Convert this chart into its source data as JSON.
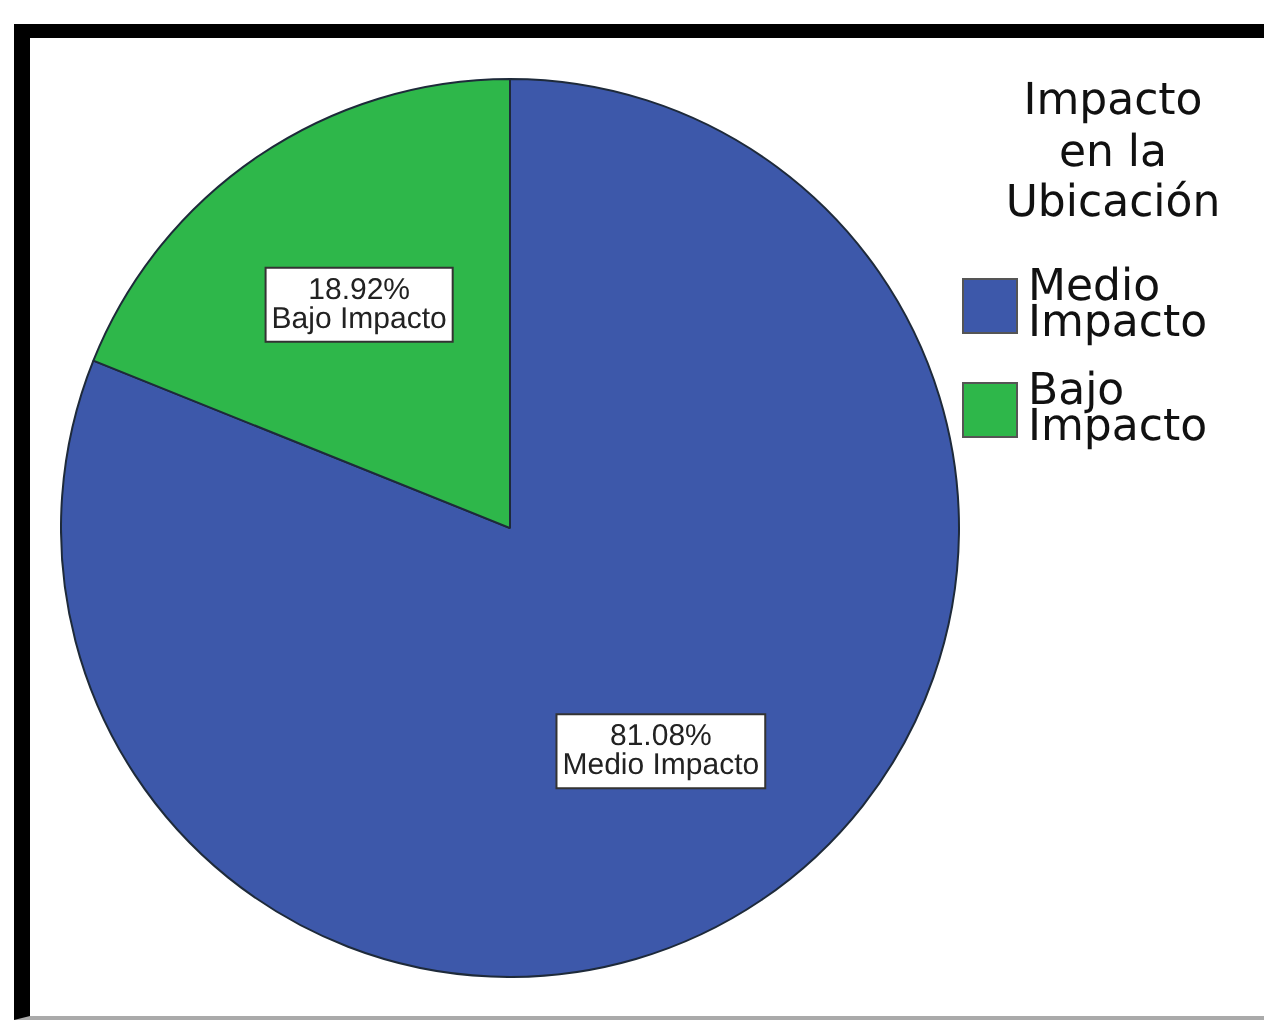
{
  "chart_data": {
    "type": "pie",
    "categories": [
      "Medio Impacto",
      "Bajo Impacto"
    ],
    "values": [
      81.08,
      18.92
    ],
    "colors": [
      "#3d58aa",
      "#2eb74a"
    ],
    "value_labels": [
      "81.08%",
      "18.92%"
    ],
    "legend_title": "Impacto en la Ubicación",
    "legend": "top right"
  }
}
